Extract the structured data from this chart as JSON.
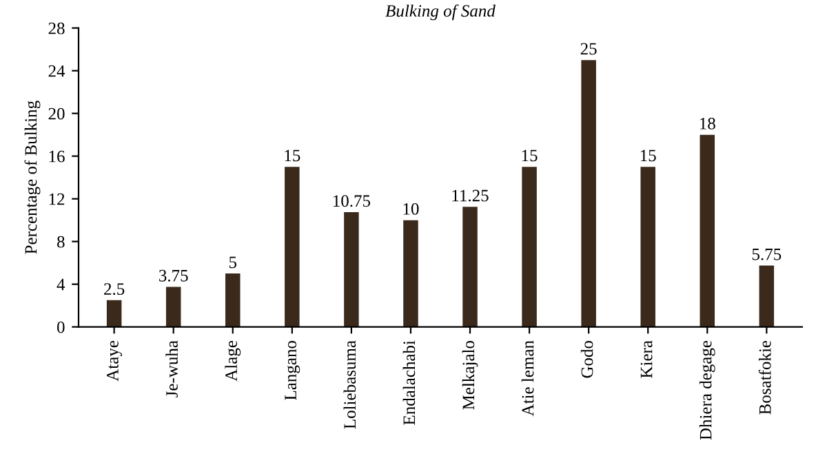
{
  "chart_data": {
    "type": "bar",
    "title": "Bulking of Sand",
    "ylabel": "Percentage of Bulking",
    "categories": [
      "Ataye",
      "Je-wuha",
      "Alage",
      "Langano",
      "Loliebasuma",
      "Endalachabi",
      "Melkajalo",
      "Atie leman",
      "Godo",
      "Kiera",
      "Dhiera degage",
      "Bosatfokie"
    ],
    "values": [
      2.5,
      3.75,
      5,
      15,
      10.75,
      10,
      11.25,
      15,
      25,
      15,
      18,
      5.75
    ],
    "value_labels": [
      "2.5",
      "3.75",
      "5",
      "15",
      "10.75",
      "10",
      "11.25",
      "15",
      "25",
      "15",
      "18",
      "5.75"
    ],
    "color": "#3b2a1c",
    "ylim": [
      0,
      28
    ],
    "yticks": [
      0,
      4,
      8,
      12,
      16,
      20,
      24,
      28
    ],
    "grid": false,
    "legend": false
  }
}
